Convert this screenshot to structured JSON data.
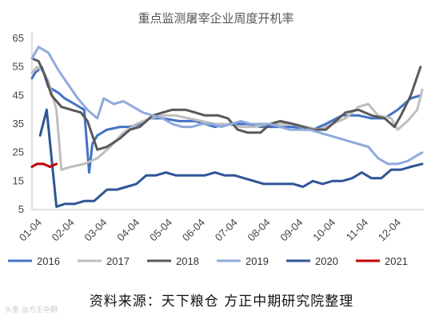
{
  "chart_data": {
    "type": "line",
    "title": "重点监测屠宰企业周度开机率",
    "x_ticks": [
      "01-04",
      "02-04",
      "03-04",
      "04-04",
      "05-04",
      "06-04",
      "07-04",
      "08-04",
      "09-04",
      "10-04",
      "11-04",
      "12-04"
    ],
    "ylim": [
      5,
      65
    ],
    "y_ticks": [
      "5",
      "15",
      "25",
      "35",
      "45",
      "55",
      "65"
    ],
    "grid": false,
    "legend_position": "bottom",
    "series": [
      {
        "name": "2016",
        "color": "#4472c4",
        "x": [
          0,
          0.1,
          0.3,
          0.5,
          0.8,
          1.0,
          1.3,
          1.6,
          1.75,
          1.85,
          2.0,
          2.3,
          2.7,
          3.0,
          3.3,
          3.6,
          4.0,
          4.5,
          5.0,
          5.3,
          5.6,
          6.0,
          6.3,
          6.6,
          7.0,
          7.3,
          7.6,
          8.0,
          8.3,
          8.6,
          9.0,
          9.5,
          10.0,
          10.4,
          10.8,
          11.2,
          11.6,
          11.9
        ],
        "values": [
          51,
          53,
          55,
          48,
          46,
          44,
          42,
          40,
          18,
          28,
          31,
          33,
          34,
          34,
          35,
          37,
          37,
          36,
          36,
          35,
          34,
          35,
          35,
          35,
          34,
          34,
          34,
          34,
          33,
          33,
          35,
          38,
          38,
          37,
          37,
          40,
          44,
          45
        ]
      },
      {
        "name": "2017",
        "color": "#bfbfbf",
        "x": [
          0,
          0.15,
          0.3,
          0.5,
          0.75,
          0.9,
          1.2,
          1.6,
          2.0,
          2.4,
          2.8,
          3.2,
          3.6,
          4.0,
          4.4,
          4.8,
          5.2,
          5.6,
          6.0,
          6.4,
          6.8,
          7.2,
          7.6,
          8.0,
          8.4,
          8.8,
          9.2,
          9.6,
          10.0,
          10.3,
          10.6,
          11.0,
          11.2,
          11.5,
          11.8,
          11.95
        ],
        "values": [
          53,
          55,
          54,
          50,
          40,
          19,
          20,
          21,
          23,
          27,
          32,
          35,
          37,
          38,
          38,
          37,
          36,
          35,
          35,
          34,
          34,
          35,
          35,
          35,
          34,
          33,
          35,
          37,
          41,
          42,
          38,
          37,
          33,
          36,
          40,
          47
        ]
      },
      {
        "name": "2018",
        "color": "#595959",
        "x": [
          0,
          0.2,
          0.4,
          0.6,
          0.9,
          1.2,
          1.5,
          1.7,
          2.0,
          2.3,
          2.7,
          3.0,
          3.3,
          3.7,
          4.0,
          4.3,
          4.7,
          5.0,
          5.3,
          5.7,
          6.0,
          6.3,
          6.6,
          7.0,
          7.3,
          7.6,
          8.0,
          8.3,
          8.6,
          9.0,
          9.3,
          9.6,
          10.0,
          10.4,
          10.8,
          11.1,
          11.3,
          11.6,
          11.9
        ],
        "values": [
          58,
          57,
          52,
          45,
          41,
          40,
          39,
          36,
          26,
          27,
          30,
          33,
          34,
          38,
          39,
          40,
          40,
          39,
          38,
          38,
          37,
          33,
          32,
          32,
          35,
          36,
          35,
          34,
          33,
          33,
          36,
          39,
          40,
          38,
          37,
          34,
          38,
          45,
          55
        ]
      },
      {
        "name": "2019",
        "color": "#8faadc",
        "x": [
          0,
          0.2,
          0.5,
          0.8,
          1.1,
          1.4,
          1.7,
          2.0,
          2.2,
          2.5,
          2.8,
          3.1,
          3.4,
          3.7,
          4.0,
          4.3,
          4.6,
          4.9,
          5.2,
          5.5,
          5.8,
          6.1,
          6.4,
          6.7,
          7.0,
          7.3,
          7.6,
          7.9,
          8.2,
          8.5,
          8.8,
          9.1,
          9.4,
          9.7,
          10.0,
          10.3,
          10.6,
          10.9,
          11.2,
          11.5,
          11.8,
          11.95
        ],
        "values": [
          58,
          62,
          60,
          54,
          49,
          44,
          40,
          37,
          44,
          42,
          43,
          41,
          39,
          38,
          37,
          35,
          34,
          34,
          35,
          35,
          34,
          35,
          36,
          35,
          35,
          35,
          34,
          33,
          33,
          33,
          32,
          31,
          30,
          29,
          28,
          27,
          23,
          21,
          21,
          22,
          24,
          25
        ]
      },
      {
        "name": "2020",
        "color": "#2f5597",
        "x": [
          0.25,
          0.45,
          0.75,
          1.0,
          1.3,
          1.6,
          1.9,
          2.0,
          2.3,
          2.6,
          2.9,
          3.2,
          3.5,
          3.8,
          4.1,
          4.4,
          4.7,
          5.0,
          5.3,
          5.6,
          5.9,
          6.2,
          6.5,
          6.8,
          7.1,
          7.4,
          7.7,
          8.0,
          8.3,
          8.6,
          8.9,
          9.2,
          9.5,
          9.8,
          10.1,
          10.4,
          10.7,
          11.0,
          11.3,
          11.6,
          11.95
        ],
        "values": [
          31,
          40,
          6,
          7,
          7,
          8,
          8,
          9,
          12,
          12,
          13,
          14,
          17,
          17,
          18,
          17,
          17,
          17,
          17,
          18,
          17,
          17,
          16,
          15,
          14,
          14,
          14,
          14,
          13,
          15,
          14,
          15,
          15,
          16,
          18,
          16,
          16,
          19,
          19,
          20,
          21
        ]
      },
      {
        "name": "2021",
        "color": "#c00000",
        "x": [
          0,
          0.15,
          0.35,
          0.55,
          0.75
        ],
        "values": [
          20,
          21,
          21,
          20,
          21
        ]
      }
    ]
  },
  "source_text": "资料来源：天下粮仓 方正中期研究院整理",
  "watermark_text": "头条 @方正中期"
}
